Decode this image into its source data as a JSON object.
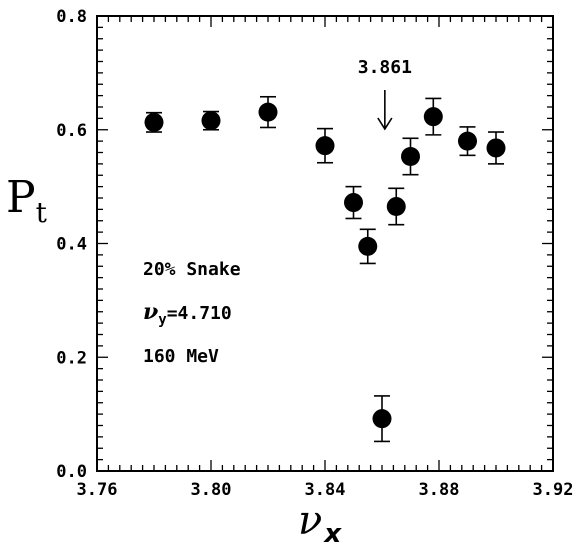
{
  "chart_data": {
    "type": "scatter",
    "ylabel": "P",
    "ylabel_sub": "t",
    "xlabel": "ν",
    "xlabel_sub": "x",
    "xlim": [
      3.76,
      3.92
    ],
    "ylim": [
      0.0,
      0.8
    ],
    "xticks": [
      "3.76",
      "3.80",
      "3.84",
      "3.88",
      "3.92"
    ],
    "yticks": [
      "0.0",
      "0.2",
      "0.4",
      "0.6",
      "0.8"
    ],
    "series": [
      {
        "x": [
          3.78,
          3.8,
          3.82,
          3.84,
          3.85,
          3.855,
          3.86,
          3.865,
          3.87,
          3.878,
          3.89,
          3.9
        ],
        "y": [
          0.613,
          0.616,
          0.631,
          0.572,
          0.472,
          0.395,
          0.092,
          0.465,
          0.553,
          0.623,
          0.58,
          0.568
        ],
        "yerr": [
          0.017,
          0.016,
          0.027,
          0.03,
          0.028,
          0.03,
          0.04,
          0.032,
          0.032,
          0.032,
          0.025,
          0.028
        ]
      }
    ],
    "annotations": {
      "marker_label": "3.861",
      "marker_x": 3.861,
      "lines": [
        {
          "pre": "20% Snake",
          "sym": "",
          "sub": "",
          "post": ""
        },
        {
          "pre": "",
          "sym": "ν",
          "sub": "y",
          "post": "=4.710"
        },
        {
          "pre": "160 MeV",
          "sym": "",
          "sub": "",
          "post": ""
        }
      ]
    },
    "grid": false,
    "legend": "none"
  }
}
